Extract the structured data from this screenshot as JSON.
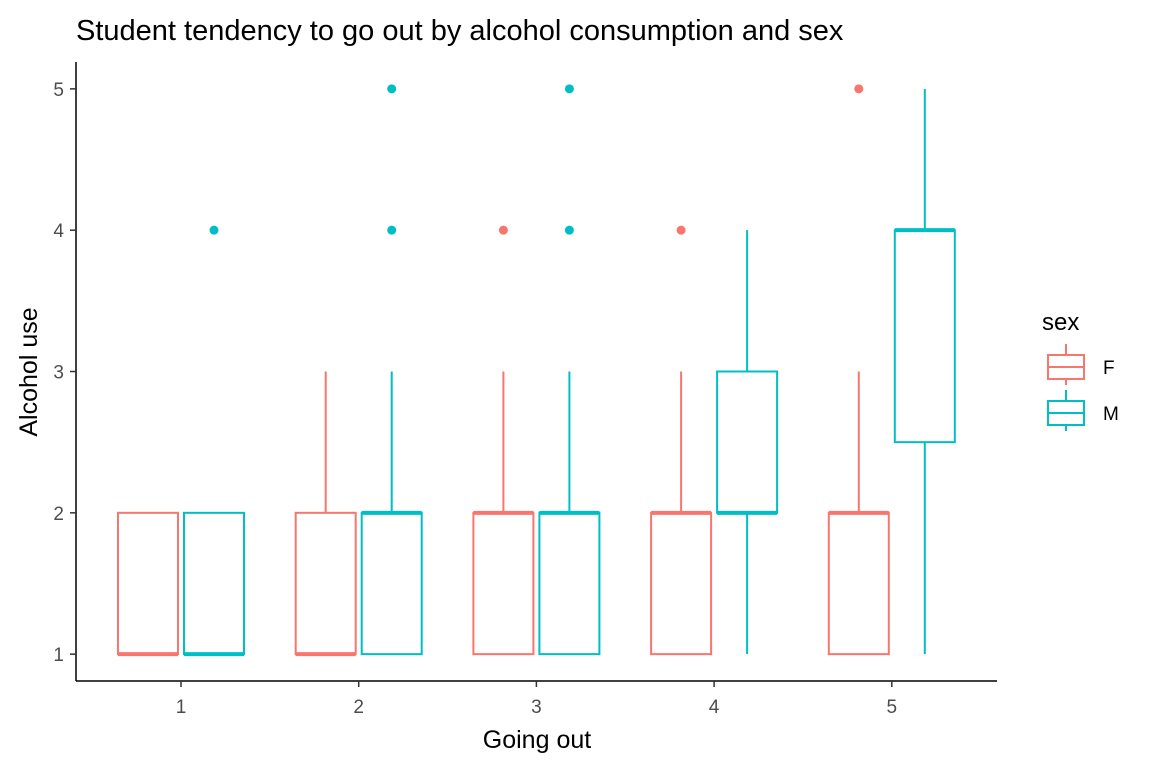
{
  "chart_data": {
    "type": "boxplot",
    "title": "Student tendency to go out by alcohol consumption and sex",
    "xlabel": "Going out",
    "ylabel": "Alcohol use",
    "categories": [
      "1",
      "2",
      "3",
      "4",
      "5"
    ],
    "ylim": [
      0.81,
      5.19
    ],
    "yticks": [
      "1",
      "2",
      "3",
      "4",
      "5"
    ],
    "grid": false,
    "legend": {
      "title": "sex",
      "position": "right"
    },
    "series": [
      {
        "name": "F",
        "color": "#F8766D",
        "boxes": [
          {
            "x": "1",
            "min": 1,
            "q1": 1,
            "median": 1,
            "q3": 2,
            "max": 2,
            "outliers": []
          },
          {
            "x": "2",
            "min": 1,
            "q1": 1,
            "median": 1,
            "q3": 2,
            "max": 3,
            "outliers": []
          },
          {
            "x": "3",
            "min": 1,
            "q1": 1,
            "median": 2,
            "q3": 2,
            "max": 3,
            "outliers": [
              4
            ]
          },
          {
            "x": "4",
            "min": 1,
            "q1": 1,
            "median": 2,
            "q3": 2,
            "max": 3,
            "outliers": [
              4
            ]
          },
          {
            "x": "5",
            "min": 1,
            "q1": 1,
            "median": 2,
            "q3": 2,
            "max": 3,
            "outliers": [
              5
            ]
          }
        ]
      },
      {
        "name": "M",
        "color": "#00BFC4",
        "boxes": [
          {
            "x": "1",
            "min": 1,
            "q1": 1,
            "median": 1,
            "q3": 2,
            "max": 2,
            "outliers": [
              4
            ]
          },
          {
            "x": "2",
            "min": 1,
            "q1": 1,
            "median": 2,
            "q3": 2,
            "max": 3,
            "outliers": [
              4,
              5
            ]
          },
          {
            "x": "3",
            "min": 1,
            "q1": 1,
            "median": 2,
            "q3": 2,
            "max": 3,
            "outliers": [
              4,
              5
            ]
          },
          {
            "x": "4",
            "min": 1,
            "q1": 2,
            "median": 2,
            "q3": 3,
            "max": 4,
            "outliers": []
          },
          {
            "x": "5",
            "min": 1,
            "q1": 2.5,
            "median": 4,
            "q3": 4,
            "max": 5,
            "outliers": []
          }
        ]
      }
    ]
  }
}
